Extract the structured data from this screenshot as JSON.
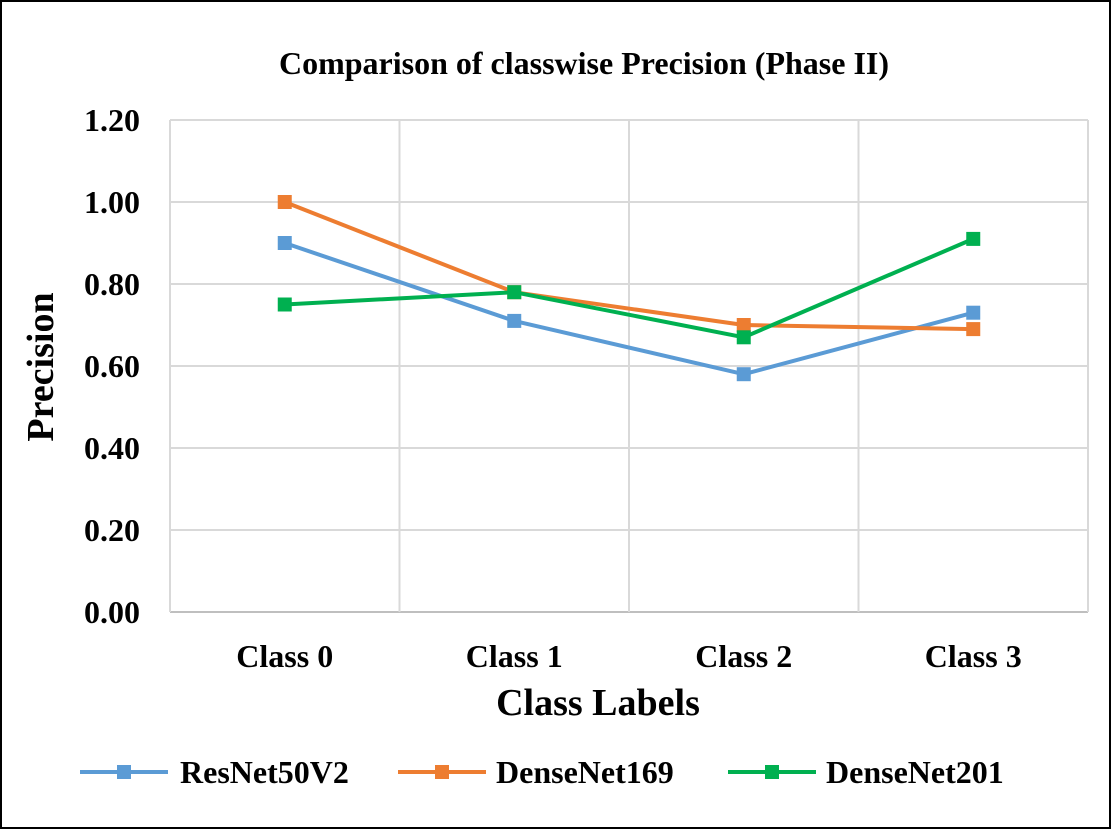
{
  "chart_data": {
    "type": "line",
    "title": "Comparison of classwise Precision (Phase II)",
    "xlabel": "Class Labels",
    "ylabel": "Precision",
    "categories": [
      "Class 0",
      "Class 1",
      "Class 2",
      "Class 3"
    ],
    "ylim": [
      0,
      1.2
    ],
    "yticks": [
      "0.00",
      "0.20",
      "0.40",
      "0.60",
      "0.80",
      "1.00",
      "1.20"
    ],
    "grid": true,
    "legend_position": "bottom",
    "series": [
      {
        "name": "ResNet50V2",
        "color": "#5B9BD5",
        "values": [
          0.9,
          0.71,
          0.58,
          0.73
        ]
      },
      {
        "name": "DenseNet169",
        "color": "#ED7D31",
        "values": [
          1.0,
          0.78,
          0.7,
          0.69
        ]
      },
      {
        "name": "DenseNet201",
        "color": "#00B050",
        "values": [
          0.75,
          0.78,
          0.67,
          0.91
        ]
      }
    ]
  }
}
